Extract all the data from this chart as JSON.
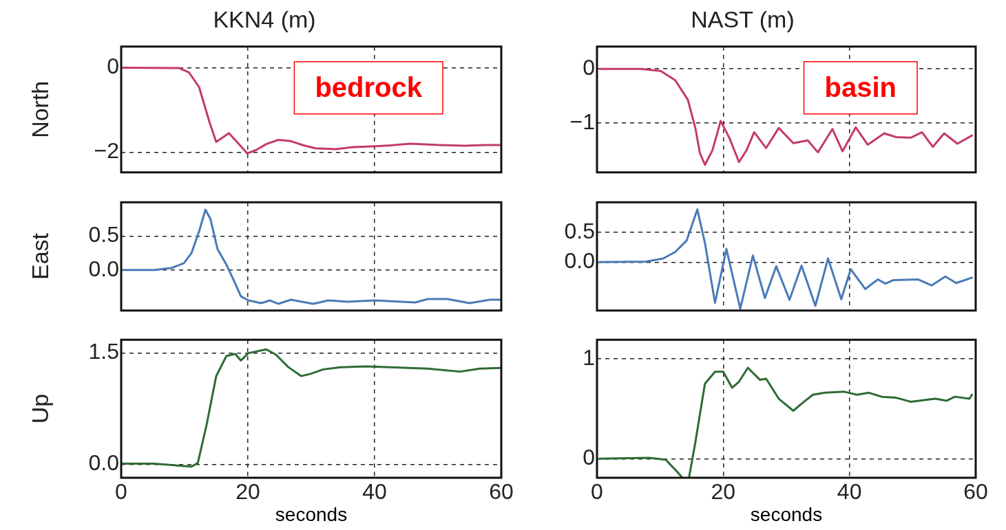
{
  "chart_data": [
    {
      "type": "line",
      "title": "KKN4 (m)",
      "ylabel": "North",
      "annotations": [
        "bedrock"
      ],
      "marker": "none",
      "grid": true,
      "tick_labels": "y",
      "xlim": [
        0,
        60
      ],
      "xticks": [
        0,
        20,
        40,
        60
      ],
      "ylim": [
        -2.48,
        0.5
      ],
      "yticks": [
        0,
        {
          "value": -2,
          "label": "−2"
        }
      ],
      "x": [
        0.1,
        9.2,
        10.7,
        12.3,
        13.9,
        15.0,
        17.0,
        18.6,
        19.9,
        21.3,
        22.9,
        24.8,
        26.8,
        28.8,
        30.7,
        33.9,
        36.6,
        40.1,
        42.5,
        45.6,
        50.3,
        54.2,
        57.4,
        59.9
      ],
      "series": [
        {
          "color": "#c43a6e",
          "values": [
            0,
            -0.01,
            -0.11,
            -0.46,
            -1.27,
            -1.76,
            -1.55,
            -1.81,
            -2.03,
            -1.95,
            -1.81,
            -1.71,
            -1.74,
            -1.84,
            -1.91,
            -1.93,
            -1.88,
            -1.86,
            -1.84,
            -1.8,
            -1.83,
            -1.85,
            -1.83,
            -1.83
          ]
        }
      ]
    },
    {
      "type": "line",
      "title": "NAST (m)",
      "annotations": [
        "basin"
      ],
      "marker": "none",
      "grid": true,
      "tick_labels": "y",
      "xlim": [
        0,
        60
      ],
      "xticks": [
        0,
        20,
        40,
        60
      ],
      "ylim": [
        -1.91,
        0.41
      ],
      "yticks": [
        0,
        {
          "value": -1,
          "label": "−1"
        }
      ],
      "x": [
        0.4,
        7.0,
        10.1,
        12.4,
        14.4,
        15.6,
        16.3,
        17.1,
        18.3,
        19.6,
        21.0,
        22.5,
        23.7,
        24.9,
        26.8,
        28.8,
        31.1,
        33.4,
        35.0,
        37.3,
        38.9,
        41.0,
        42.9,
        45.5,
        47.4,
        49.7,
        51.5,
        53.2,
        55.0,
        57.1,
        59.4
      ],
      "series": [
        {
          "color": "#c43a6e",
          "values": [
            0,
            0,
            -0.04,
            -0.21,
            -0.57,
            -1.1,
            -1.55,
            -1.77,
            -1.5,
            -0.96,
            -1.28,
            -1.72,
            -1.5,
            -1.17,
            -1.46,
            -1.09,
            -1.37,
            -1.32,
            -1.54,
            -1.11,
            -1.52,
            -1.08,
            -1.4,
            -1.19,
            -1.26,
            -1.27,
            -1.17,
            -1.44,
            -1.19,
            -1.38,
            -1.23
          ]
        }
      ]
    },
    {
      "type": "line",
      "ylabel": "East",
      "marker": "none",
      "grid": true,
      "tick_labels": "y",
      "xlim": [
        0,
        60
      ],
      "xticks": [
        0,
        20,
        40,
        60
      ],
      "ylim": [
        -0.6,
        1.0
      ],
      "yticks": [
        {
          "value": 0,
          "label": "0.0"
        },
        0.5
      ],
      "x": [
        0.1,
        5.2,
        8.0,
        9.9,
        11.1,
        12.3,
        13.3,
        14.1,
        15.2,
        16.6,
        17.8,
        18.9,
        20.1,
        22.1,
        23.5,
        24.8,
        26.8,
        30.3,
        32.7,
        35.8,
        40.1,
        46.4,
        48.4,
        51.5,
        55.0,
        58.2,
        59.9
      ],
      "series": [
        {
          "color": "#4a7ab8",
          "values": [
            0,
            0,
            0.03,
            0.1,
            0.25,
            0.57,
            0.89,
            0.75,
            0.31,
            0.08,
            -0.16,
            -0.39,
            -0.45,
            -0.49,
            -0.45,
            -0.5,
            -0.44,
            -0.5,
            -0.45,
            -0.47,
            -0.45,
            -0.48,
            -0.43,
            -0.43,
            -0.49,
            -0.44,
            -0.44
          ]
        }
      ]
    },
    {
      "type": "line",
      "marker": "none",
      "grid": true,
      "tick_labels": "y",
      "xlim": [
        0,
        60
      ],
      "xticks": [
        0,
        20,
        40,
        60
      ],
      "ylim": [
        -0.81,
        1.0
      ],
      "yticks": [
        {
          "value": 0,
          "label": "0.0"
        },
        0.5
      ],
      "x": [
        0.4,
        7.8,
        10.5,
        12.4,
        14.2,
        15.9,
        17.1,
        18.7,
        20.5,
        22.7,
        24.7,
        26.6,
        28.4,
        30.5,
        32.4,
        34.6,
        36.6,
        38.7,
        40.2,
        42.5,
        44.5,
        45.7,
        47.0,
        50.9,
        53.0,
        55.2,
        56.9,
        59.4
      ],
      "series": [
        {
          "color": "#4a7ab8",
          "values": [
            0,
            0.01,
            0.06,
            0.17,
            0.36,
            0.88,
            0.32,
            -0.68,
            0.22,
            -0.78,
            0.11,
            -0.6,
            -0.07,
            -0.63,
            -0.06,
            -0.73,
            0.06,
            -0.62,
            -0.12,
            -0.45,
            -0.29,
            -0.36,
            -0.3,
            -0.29,
            -0.39,
            -0.24,
            -0.35,
            -0.26
          ]
        }
      ]
    },
    {
      "type": "line",
      "ylabel": "Up",
      "xlabel": "seconds",
      "marker": "none",
      "grid": true,
      "xlim": [
        0,
        60
      ],
      "xticks": [
        0,
        20,
        40,
        60
      ],
      "ylim": [
        -0.18,
        1.68
      ],
      "yticks": [
        {
          "value": 0,
          "label": "0.0"
        },
        1.5
      ],
      "x": [
        0.1,
        5.2,
        11.1,
        12.1,
        13.5,
        15.0,
        16.6,
        18.0,
        18.9,
        20.1,
        22.9,
        24.4,
        26.4,
        28.4,
        29.9,
        31.9,
        34.6,
        38.6,
        42.5,
        48.4,
        53.5,
        56.6,
        59.9
      ],
      "series": [
        {
          "color": "#2e6b35",
          "values": [
            0.01,
            0.01,
            -0.03,
            0.02,
            0.54,
            1.19,
            1.46,
            1.49,
            1.4,
            1.5,
            1.55,
            1.48,
            1.31,
            1.19,
            1.22,
            1.28,
            1.31,
            1.32,
            1.31,
            1.29,
            1.25,
            1.29,
            1.3
          ]
        }
      ]
    },
    {
      "type": "line",
      "xlabel": "seconds",
      "marker": "none",
      "grid": true,
      "xlim": [
        0,
        60
      ],
      "xticks": [
        0,
        20,
        40,
        60
      ],
      "ylim": [
        -0.19,
        1.19
      ],
      "yticks": [
        0,
        1
      ],
      "x": [
        0.4,
        8.2,
        10.9,
        12.4,
        13.4,
        14.0,
        14.6,
        15.6,
        17.1,
        18.7,
        20.0,
        21.4,
        22.5,
        23.9,
        25.8,
        26.8,
        28.8,
        31.1,
        32.6,
        34.2,
        36.1,
        39.2,
        41.2,
        43.1,
        45.1,
        47.4,
        49.7,
        53.6,
        55.4,
        56.7,
        59.0,
        59.4
      ],
      "series": [
        {
          "color": "#2e6b35",
          "values": [
            0,
            0.01,
            -0.01,
            -0.11,
            -0.18,
            null,
            -0.18,
            0.17,
            0.75,
            0.87,
            0.87,
            0.71,
            0.77,
            0.91,
            0.79,
            0.8,
            0.6,
            0.48,
            0.56,
            0.64,
            0.66,
            0.67,
            0.64,
            0.66,
            0.62,
            0.61,
            0.57,
            0.6,
            0.58,
            0.62,
            0.6,
            0.64
          ]
        }
      ]
    }
  ]
}
